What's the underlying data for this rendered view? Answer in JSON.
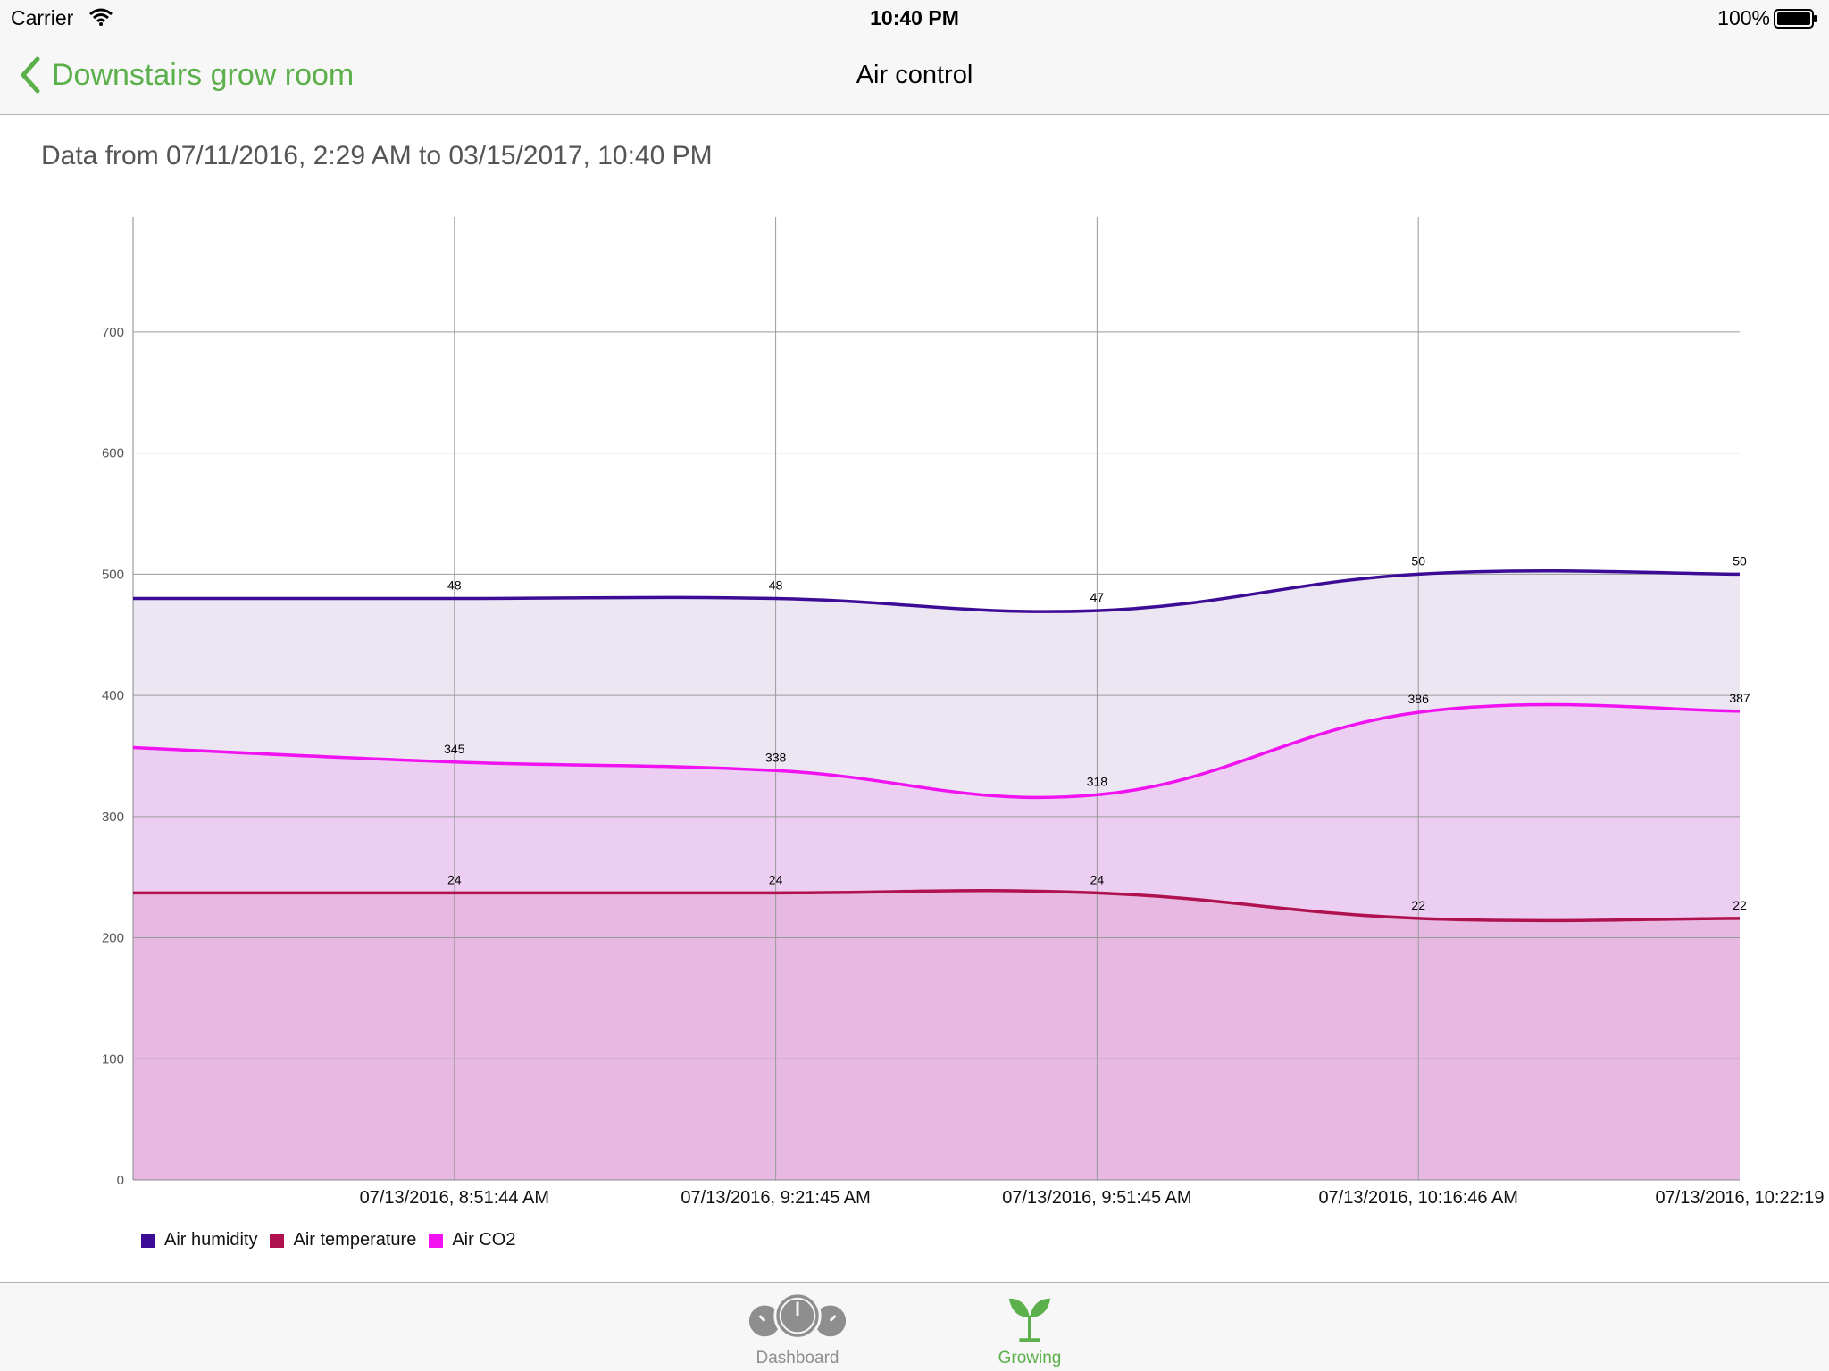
{
  "status_bar": {
    "carrier": "Carrier",
    "time": "10:40 PM",
    "battery": "100%"
  },
  "nav": {
    "back_label": "Downstairs grow room",
    "title": "Air control"
  },
  "date_range": "Data from 07/11/2016, 2:29 AM to 03/15/2017, 10:40 PM",
  "colors": {
    "accent": "#5cb04b",
    "humidity": "#3c0c96",
    "temperature": "#b0124f",
    "co2": "#f012f0"
  },
  "chart_data": {
    "type": "area",
    "x": [
      "",
      "07/13/2016, 8:51:44 AM",
      "07/13/2016, 9:21:45 AM",
      "07/13/2016, 9:51:45 AM",
      "07/13/2016, 10:16:46 AM",
      "07/13/2016, 10:22:19"
    ],
    "ylim": [
      0,
      795
    ],
    "yticks": [
      0,
      100,
      200,
      300,
      400,
      500,
      600,
      700
    ],
    "grid": true,
    "legend_position": "bottom-left",
    "series": [
      {
        "name": "Air humidity",
        "color": "#3c0c96",
        "fill": "#ece6f3",
        "scale": 10,
        "values": [
          48,
          48,
          48,
          47,
          50,
          50
        ],
        "labels": [
          "",
          "48",
          "48",
          "47",
          "50",
          "50"
        ]
      },
      {
        "name": "Air CO2",
        "color": "#f012f0",
        "fill": "#edcef3",
        "scale": 1,
        "values": [
          357,
          345,
          338,
          318,
          386,
          387
        ],
        "labels": [
          "",
          "345",
          "338",
          "318",
          "386",
          "387"
        ]
      },
      {
        "name": "Air temperature",
        "color": "#b0124f",
        "fill": "#e6b8e2",
        "scale": 10,
        "values": [
          23.7,
          23.7,
          23.7,
          23.7,
          21.6,
          21.6
        ],
        "labels": [
          "",
          "24",
          "24",
          "24",
          "22",
          "22"
        ]
      }
    ]
  },
  "legend": [
    {
      "label": "Air humidity",
      "color": "#3c0c96"
    },
    {
      "label": "Air temperature",
      "color": "#b0124f"
    },
    {
      "label": "Air CO2",
      "color": "#f012f0"
    }
  ],
  "tabs": [
    {
      "label": "Dashboard",
      "icon": "gauge-icon"
    },
    {
      "label": "Growing",
      "icon": "sprout-icon"
    }
  ]
}
